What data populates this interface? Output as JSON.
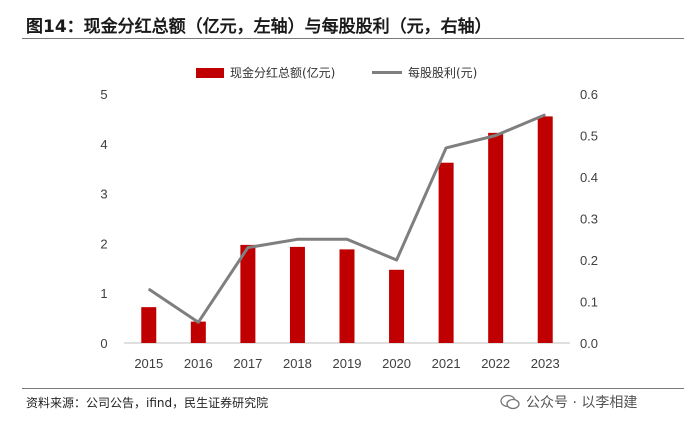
{
  "title": "图14：现金分红总额（亿元，左轴）与每股股利（元，右轴）",
  "source": "资料来源：公司公告，ifind，民生证券研究院",
  "watermark": "公众号 · 以李相建",
  "colors": {
    "bar": "#c00000",
    "line": "#7f7f7f"
  },
  "chart_data": {
    "type": "bar",
    "categories": [
      "2015",
      "2016",
      "2017",
      "2018",
      "2019",
      "2020",
      "2021",
      "2022",
      "2023"
    ],
    "series": [
      {
        "name": "现金分红总额(亿元)",
        "type": "bar",
        "axis": "left",
        "values": [
          0.72,
          0.43,
          1.97,
          1.93,
          1.88,
          1.47,
          3.62,
          4.22,
          4.55
        ]
      },
      {
        "name": "每股股利(元)",
        "type": "line",
        "axis": "right",
        "values": [
          0.13,
          0.05,
          0.23,
          0.25,
          0.25,
          0.2,
          0.47,
          0.5,
          0.55
        ]
      }
    ],
    "y_left": {
      "ylim": [
        0,
        5
      ],
      "ticks": [
        "0",
        "1",
        "2",
        "3",
        "4",
        "5"
      ]
    },
    "y_right": {
      "ylim": [
        0,
        0.6
      ],
      "ticks": [
        "0.0",
        "0.1",
        "0.2",
        "0.3",
        "0.4",
        "0.5",
        "0.6"
      ]
    },
    "legend_position": "top",
    "grid": false
  }
}
